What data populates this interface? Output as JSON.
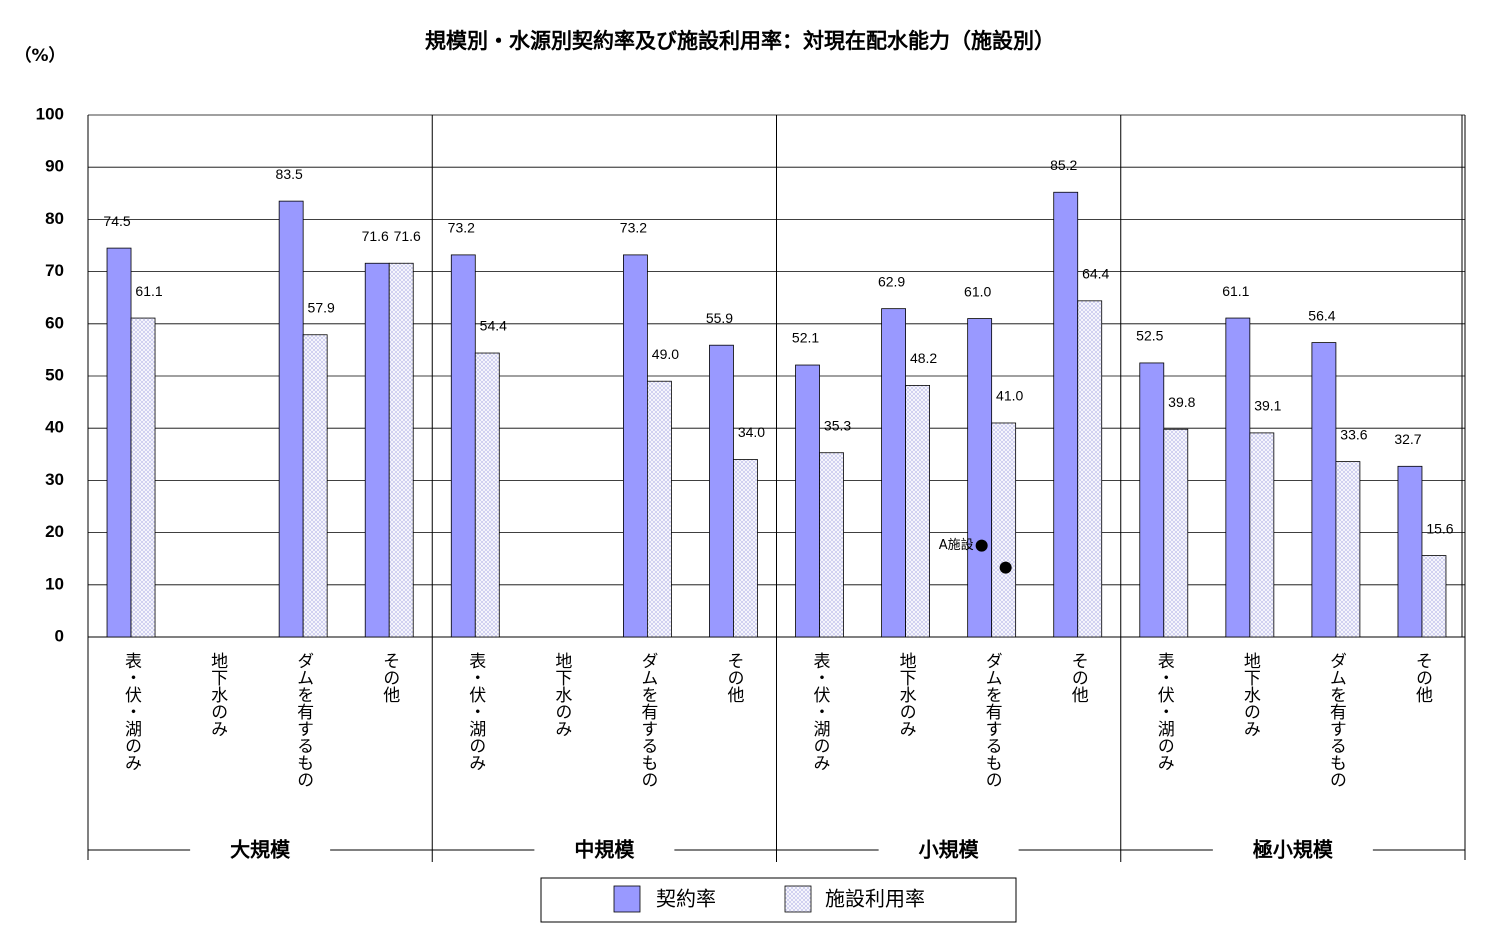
{
  "chart_data": {
    "type": "bar",
    "title": "規模別・水源別契約率及び施設利用率：対現在配水能力（施設別）",
    "y_label": "（%）",
    "categories": [
      "表・伏・湖のみ",
      "地下水のみ",
      "ダムを有するもの",
      "その他",
      "表・伏・湖のみ",
      "地下水のみ",
      "ダムを有するもの",
      "その他",
      "表・伏・湖のみ",
      "地下水のみ",
      "ダムを有するもの",
      "その他",
      "表・伏・湖のみ",
      "地下水のみ",
      "ダムを有するもの",
      "その他"
    ],
    "groups": [
      "大規模",
      "中規模",
      "小規模",
      "極小規模"
    ],
    "series": [
      {
        "name": "契約率",
        "color": "#9999ff",
        "values": [
          74.5,
          null,
          83.5,
          71.6,
          73.2,
          null,
          73.2,
          55.9,
          52.1,
          62.9,
          61.0,
          85.2,
          52.5,
          61.1,
          56.4,
          32.7
        ],
        "value_labels": [
          "74.5",
          null,
          "83.5",
          "71.6",
          "73.2",
          null,
          "73.2",
          "55.9",
          "52.1",
          "62.9",
          "61.0",
          "85.2",
          "52.5",
          "61.1",
          "56.4",
          "32.7"
        ]
      },
      {
        "name": "施設利用率",
        "color": "#c8c8ee",
        "values": [
          61.1,
          null,
          57.9,
          71.6,
          54.4,
          null,
          49.0,
          34.0,
          35.3,
          48.2,
          41.0,
          64.4,
          39.8,
          39.1,
          33.6,
          15.6
        ],
        "value_labels": [
          "61.1",
          null,
          "57.9",
          "71.6",
          "54.4",
          null,
          "49.0",
          "34.0",
          "35.3",
          "48.2",
          "41.0",
          "64.4",
          "39.8",
          "39.1",
          "33.6",
          "15.6"
        ]
      }
    ],
    "annotation": {
      "text": "A施設",
      "group": "小規模",
      "category": "ダムを有するもの",
      "values": [
        17.5,
        13.3
      ]
    },
    "ylim": [
      0,
      100
    ],
    "yticks": [
      0,
      10,
      20,
      30,
      40,
      50,
      60,
      70,
      80,
      90,
      100
    ],
    "grid": true
  }
}
